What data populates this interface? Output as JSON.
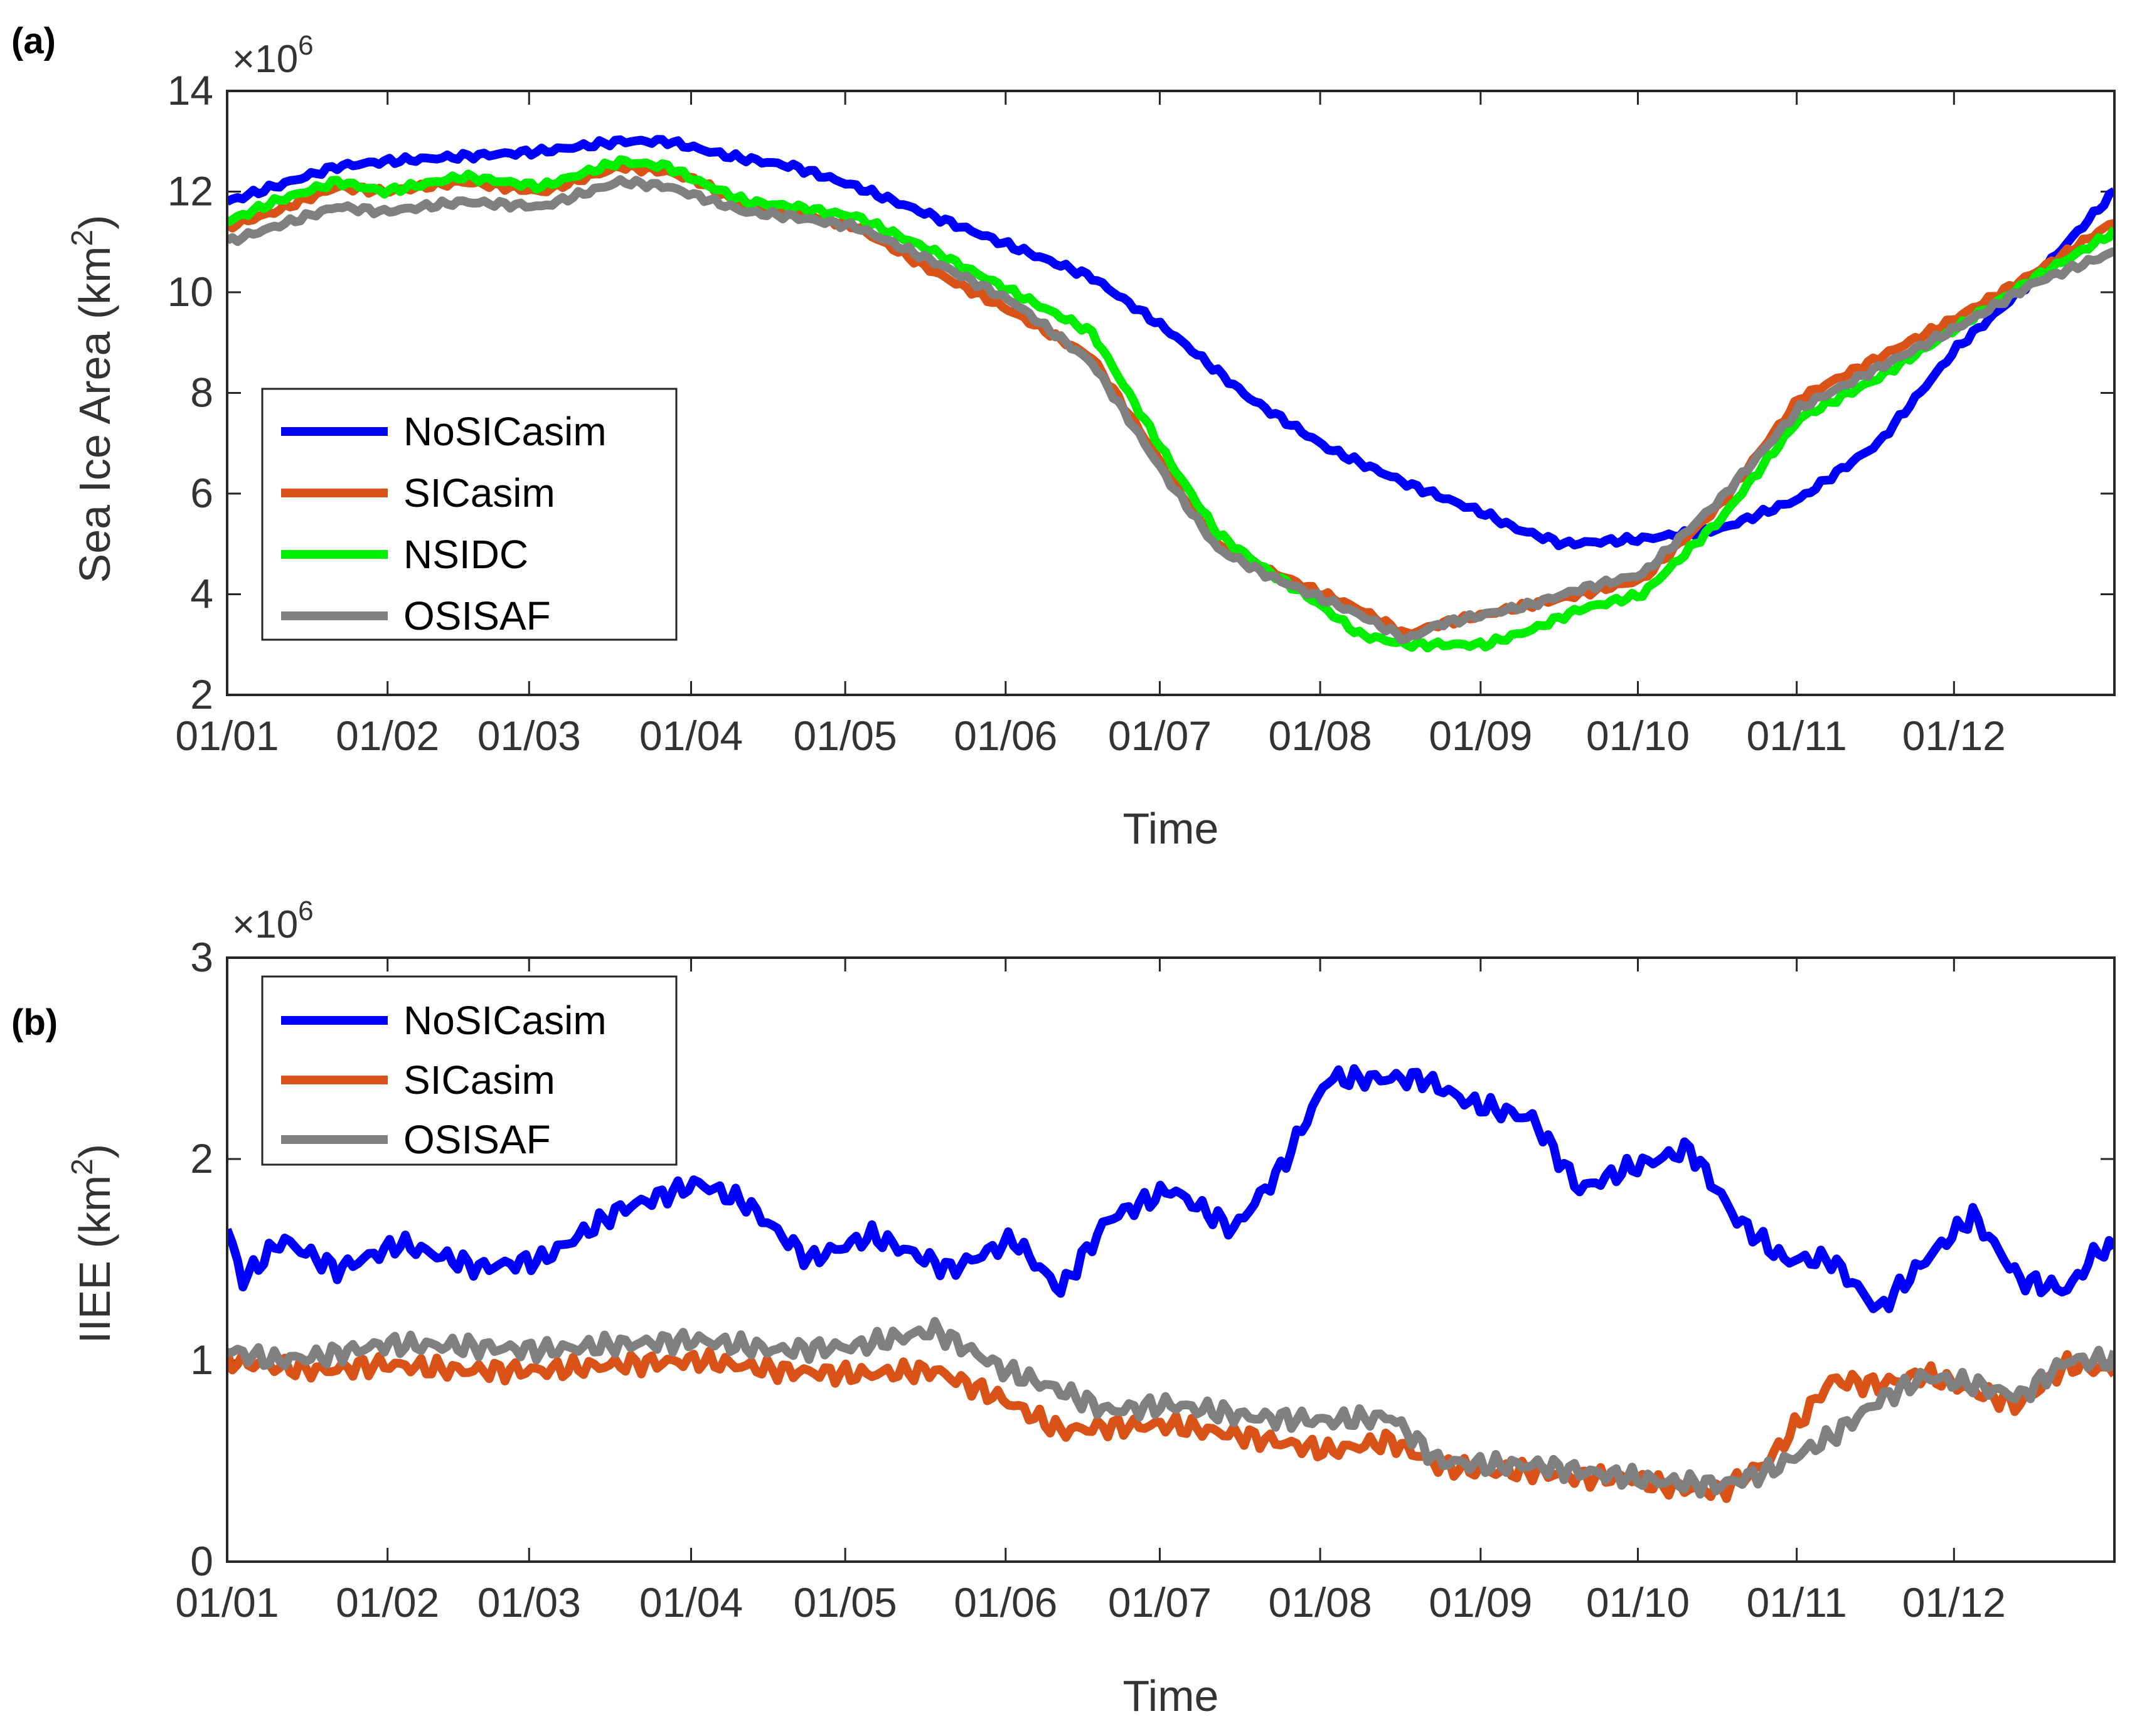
{
  "chart_data": [
    {
      "panel_label": "(a)",
      "type": "line",
      "ylabel_main": "Sea Ice Area (km",
      "ylabel_sup": "2",
      "ylabel_close": ")",
      "xlabel": "Time",
      "multiplier_base": "×10",
      "multiplier_exp": "6",
      "ylim": [
        2,
        14
      ],
      "yticks": [
        2,
        4,
        6,
        8,
        10,
        12,
        14
      ],
      "ytick_labels": [
        "2",
        "4",
        "6",
        "8",
        "10",
        "12",
        "14"
      ],
      "xlim": [
        0,
        12
      ],
      "xticks": [
        0,
        1.02,
        1.92,
        2.95,
        3.93,
        4.95,
        5.93,
        6.95,
        7.97,
        8.97,
        9.98,
        10.98
      ],
      "xtick_labels": [
        "01/01",
        "01/02",
        "01/03",
        "01/04",
        "01/05",
        "01/06",
        "01/07",
        "01/08",
        "01/09",
        "01/10",
        "01/11",
        "01/12"
      ],
      "legend": [
        "NoSICasim",
        "SICasim",
        "NSIDC",
        "OSISAF"
      ],
      "legend_position": "lower-left",
      "series": [
        {
          "name": "NoSICasim",
          "color": "#0000ff",
          "x": [
            0,
            0.3,
            0.7,
            1,
            1.5,
            2,
            2.5,
            2.8,
            3.2,
            3.6,
            4,
            4.5,
            5,
            5.5,
            6,
            6.5,
            7,
            7.5,
            8,
            8.2,
            8.5,
            9,
            9.5,
            10,
            10.5,
            11,
            11.5,
            12
          ],
          "values": [
            11.8,
            12.1,
            12.5,
            12.6,
            12.7,
            12.8,
            13.0,
            13.0,
            12.7,
            12.5,
            12.1,
            11.5,
            10.9,
            10.3,
            9.2,
            7.9,
            6.9,
            6.2,
            5.6,
            5.3,
            5.0,
            5.1,
            5.3,
            5.9,
            7.0,
            8.9,
            10.3,
            12.0
          ]
        },
        {
          "name": "SICasim",
          "color": "#d95319",
          "x": [
            0,
            0.3,
            0.7,
            1,
            1.5,
            2,
            2.5,
            2.8,
            3,
            3.3,
            3.6,
            4,
            4.5,
            5,
            5.5,
            6,
            6.3,
            6.6,
            6.9,
            7.2,
            7.5,
            7.7,
            8,
            8.3,
            8.6,
            9,
            9.5,
            10,
            10.5,
            11,
            11.5,
            12
          ],
          "values": [
            11.3,
            11.6,
            12.1,
            12.0,
            12.2,
            12.0,
            12.5,
            12.4,
            12.2,
            11.7,
            11.6,
            11.3,
            10.4,
            9.6,
            8.7,
            6.3,
            5.0,
            4.5,
            4.1,
            3.7,
            3.2,
            3.4,
            3.6,
            3.8,
            4.0,
            4.3,
            5.8,
            7.9,
            8.7,
            9.5,
            10.4,
            11.4
          ]
        },
        {
          "name": "NSIDC",
          "color": "#00ee00",
          "x": [
            0,
            0.3,
            0.7,
            1,
            1.5,
            2,
            2.5,
            2.8,
            3,
            3.3,
            3.6,
            4,
            4.5,
            5,
            5.5,
            6,
            6.3,
            6.6,
            6.9,
            7.2,
            7.5,
            7.7,
            8,
            8.3,
            8.6,
            9,
            9.5,
            10,
            10.5,
            11,
            11.5,
            12
          ],
          "values": [
            11.4,
            11.8,
            12.2,
            12.0,
            12.3,
            12.1,
            12.6,
            12.5,
            12.2,
            11.8,
            11.7,
            11.5,
            10.8,
            10.0,
            9.2,
            6.6,
            5.2,
            4.5,
            3.9,
            3.2,
            3.0,
            3.0,
            3.0,
            3.3,
            3.7,
            4.0,
            5.5,
            7.5,
            8.3,
            9.3,
            10.3,
            11.2
          ]
        },
        {
          "name": "OSISAF",
          "color": "#808080",
          "x": [
            0,
            0.3,
            0.7,
            1,
            1.5,
            2,
            2.5,
            2.8,
            3,
            3.3,
            3.6,
            4,
            4.5,
            5,
            5.5,
            6,
            6.3,
            6.6,
            6.9,
            7.2,
            7.5,
            7.7,
            8,
            8.3,
            8.6,
            9,
            9.5,
            10,
            10.5,
            11,
            11.5,
            12
          ],
          "values": [
            11.0,
            11.3,
            11.7,
            11.6,
            11.8,
            11.7,
            12.2,
            12.1,
            11.9,
            11.6,
            11.5,
            11.3,
            10.6,
            9.8,
            8.6,
            6.2,
            4.9,
            4.4,
            4.0,
            3.6,
            3.1,
            3.4,
            3.6,
            3.8,
            4.1,
            4.4,
            5.9,
            7.7,
            8.5,
            9.3,
            10.2,
            10.8
          ]
        }
      ]
    },
    {
      "panel_label": "(b)",
      "type": "line",
      "ylabel_main": "IIEE (km",
      "ylabel_sup": "2",
      "ylabel_close": ")",
      "xlabel": "Time",
      "multiplier_base": "×10",
      "multiplier_exp": "6",
      "ylim": [
        0,
        3
      ],
      "yticks": [
        0,
        1,
        2,
        3
      ],
      "ytick_labels": [
        "0",
        "1",
        "2",
        "3"
      ],
      "xlim": [
        0,
        12
      ],
      "xticks": [
        0,
        1.02,
        1.92,
        2.95,
        3.93,
        4.95,
        5.93,
        6.95,
        7.97,
        8.97,
        9.98,
        10.98
      ],
      "xtick_labels": [
        "01/01",
        "01/02",
        "01/03",
        "01/04",
        "01/05",
        "01/06",
        "01/07",
        "01/08",
        "01/09",
        "01/10",
        "01/11",
        "01/12"
      ],
      "legend": [
        "NoSICasim",
        "SICasim",
        "OSISAF"
      ],
      "legend_position": "top-left",
      "series": [
        {
          "name": "NoSICasim",
          "color": "#0000ff",
          "x": [
            0,
            0.1,
            0.35,
            0.7,
            1.1,
            1.6,
            2.0,
            2.5,
            3.0,
            3.3,
            3.7,
            4.1,
            4.6,
            5.0,
            5.3,
            5.6,
            6.0,
            6.4,
            6.7,
            7.0,
            7.3,
            7.6,
            7.9,
            8.3,
            8.6,
            8.9,
            9.3,
            9.6,
            9.9,
            10.2,
            10.5,
            10.8,
            11.1,
            11.4,
            11.7,
            11.9,
            12.0
          ],
          "values": [
            1.65,
            1.4,
            1.6,
            1.45,
            1.58,
            1.46,
            1.5,
            1.75,
            1.88,
            1.78,
            1.5,
            1.62,
            1.45,
            1.6,
            1.35,
            1.7,
            1.85,
            1.65,
            1.95,
            2.4,
            2.4,
            2.4,
            2.28,
            2.2,
            1.85,
            1.95,
            2.05,
            1.7,
            1.5,
            1.5,
            1.25,
            1.5,
            1.72,
            1.4,
            1.35,
            1.55,
            1.55
          ]
        },
        {
          "name": "SICasim",
          "color": "#d95319",
          "x": [
            0,
            0.3,
            0.6,
            1,
            1.5,
            2,
            2.5,
            3.0,
            3.5,
            4.0,
            4.5,
            4.95,
            5.3,
            5.6,
            6.0,
            6.5,
            7.0,
            7.4,
            7.7,
            8.0,
            8.3,
            8.6,
            8.9,
            9.1,
            9.5,
            9.8,
            10.2,
            10.5,
            10.8,
            11.1,
            11.4,
            11.7,
            12.0
          ],
          "values": [
            1.0,
            0.97,
            0.95,
            0.98,
            0.95,
            0.95,
            0.98,
            1.0,
            0.95,
            0.93,
            0.95,
            0.8,
            0.65,
            0.67,
            0.68,
            0.62,
            0.55,
            0.6,
            0.48,
            0.45,
            0.45,
            0.42,
            0.42,
            0.38,
            0.35,
            0.5,
            0.9,
            0.88,
            0.93,
            0.85,
            0.78,
            0.98,
            0.95
          ]
        },
        {
          "name": "OSISAF",
          "color": "#808080",
          "x": [
            0,
            0.3,
            0.6,
            1,
            1.5,
            2,
            2.5,
            3.0,
            3.5,
            4.0,
            4.5,
            4.95,
            5.3,
            5.6,
            6.0,
            6.5,
            7.0,
            7.4,
            7.7,
            8.0,
            8.3,
            8.6,
            8.9,
            9.1,
            9.5,
            9.8,
            10.2,
            10.5,
            10.8,
            11.1,
            11.4,
            11.7,
            12.0
          ],
          "values": [
            1.05,
            1.0,
            1.02,
            1.08,
            1.07,
            1.05,
            1.08,
            1.1,
            1.05,
            1.07,
            1.15,
            0.95,
            0.85,
            0.75,
            0.78,
            0.72,
            0.7,
            0.72,
            0.5,
            0.48,
            0.48,
            0.45,
            0.42,
            0.4,
            0.38,
            0.45,
            0.62,
            0.8,
            0.92,
            0.88,
            0.82,
            1.0,
            1.0
          ]
        }
      ]
    }
  ]
}
